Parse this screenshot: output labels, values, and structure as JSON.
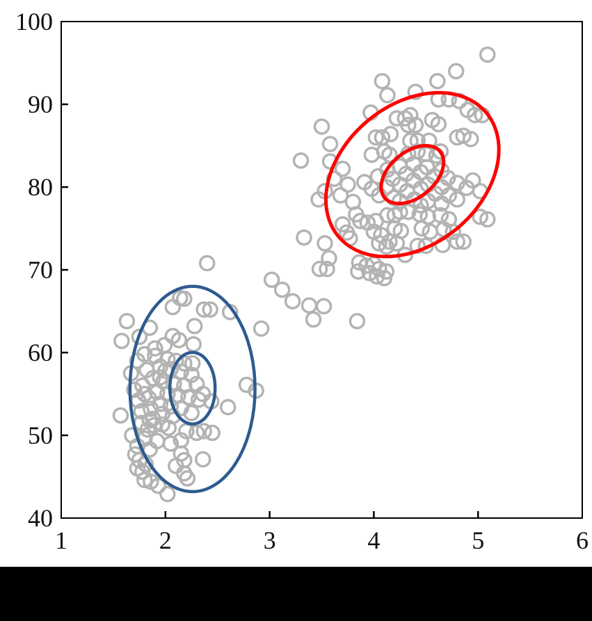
{
  "figure": {
    "background": "#ffffff",
    "bottom_bar_color": "#000000",
    "axis_color": "#000000",
    "tick_label_color": "#111111"
  },
  "chart_data": {
    "type": "scatter",
    "title": "",
    "xlabel": "",
    "ylabel": "",
    "xlim": [
      1,
      6
    ],
    "ylim": [
      40,
      100
    ],
    "x_ticks": [
      1,
      2,
      3,
      4,
      5,
      6
    ],
    "y_ticks": [
      40,
      50,
      60,
      70,
      80,
      90,
      100
    ],
    "grid": false,
    "legend": null,
    "marker": {
      "shape": "open-circle",
      "color": "#b3b3b3",
      "radius_px": 10,
      "stroke_px": 3.5
    },
    "series": [
      {
        "name": "cluster-1-lower-left",
        "color": "#b3b3b3",
        "points": [
          [
            2.4,
            70.8
          ],
          [
            2.14,
            66.6
          ],
          [
            2.18,
            66.5
          ],
          [
            1.63,
            63.8
          ],
          [
            2.07,
            65.5
          ],
          [
            2.37,
            65.2
          ],
          [
            2.43,
            65.2
          ],
          [
            2.62,
            64.9
          ],
          [
            2.92,
            62.9
          ],
          [
            1.85,
            63.0
          ],
          [
            1.75,
            61.9
          ],
          [
            2.28,
            63.2
          ],
          [
            2.07,
            62.0
          ],
          [
            2.13,
            61.5
          ],
          [
            1.99,
            60.9
          ],
          [
            2.27,
            61.0
          ],
          [
            1.58,
            61.4
          ],
          [
            1.9,
            60.5
          ],
          [
            1.8,
            59.8
          ],
          [
            1.9,
            59.6
          ],
          [
            1.73,
            59.0
          ],
          [
            2.02,
            59.2
          ],
          [
            2.1,
            59.0
          ],
          [
            2.18,
            58.7
          ],
          [
            2.26,
            58.7
          ],
          [
            1.95,
            58.3
          ],
          [
            2.05,
            58.0
          ],
          [
            1.82,
            57.9
          ],
          [
            1.67,
            57.5
          ],
          [
            2.15,
            57.7
          ],
          [
            2.25,
            57.3
          ],
          [
            1.88,
            56.9
          ],
          [
            2.0,
            57.8
          ],
          [
            1.95,
            57.0
          ],
          [
            1.98,
            56.5
          ],
          [
            2.08,
            56.2
          ],
          [
            1.78,
            56.0
          ],
          [
            1.7,
            55.5
          ],
          [
            2.18,
            56.0
          ],
          [
            2.3,
            56.2
          ],
          [
            2.78,
            56.1
          ],
          [
            2.87,
            55.4
          ],
          [
            1.92,
            55.2
          ],
          [
            2.02,
            55.0
          ],
          [
            2.12,
            54.8
          ],
          [
            1.84,
            54.5
          ],
          [
            1.74,
            54.2
          ],
          [
            2.22,
            54.6
          ],
          [
            2.32,
            54.3
          ],
          [
            2.44,
            54.1
          ],
          [
            2.36,
            55.0
          ],
          [
            1.8,
            55.0
          ],
          [
            1.95,
            53.8
          ],
          [
            2.05,
            53.5
          ],
          [
            1.86,
            53.2
          ],
          [
            2.15,
            53.3
          ],
          [
            1.77,
            52.9
          ],
          [
            1.57,
            52.4
          ],
          [
            2.6,
            53.4
          ],
          [
            1.97,
            52.6
          ],
          [
            2.07,
            52.3
          ],
          [
            2.25,
            52.7
          ],
          [
            1.88,
            52.0
          ],
          [
            1.85,
            51.8
          ],
          [
            1.77,
            51.5
          ],
          [
            1.83,
            50.7
          ],
          [
            1.89,
            51.2
          ],
          [
            1.97,
            51.3
          ],
          [
            2.03,
            50.9
          ],
          [
            2.2,
            50.5
          ],
          [
            2.3,
            50.3
          ],
          [
            2.37,
            50.5
          ],
          [
            2.45,
            50.3
          ],
          [
            1.68,
            50.0
          ],
          [
            1.8,
            49.6
          ],
          [
            1.92,
            49.3
          ],
          [
            2.05,
            49.0
          ],
          [
            2.15,
            49.4
          ],
          [
            1.73,
            48.7
          ],
          [
            1.85,
            48.3
          ],
          [
            1.71,
            47.7
          ],
          [
            1.75,
            47.0
          ],
          [
            1.81,
            46.5
          ],
          [
            1.73,
            46.0
          ],
          [
            1.78,
            45.6
          ],
          [
            2.15,
            47.8
          ],
          [
            2.18,
            47.0
          ],
          [
            2.36,
            47.1
          ],
          [
            2.1,
            46.3
          ],
          [
            2.18,
            45.4
          ],
          [
            2.21,
            44.8
          ],
          [
            1.8,
            44.6
          ],
          [
            1.86,
            44.4
          ],
          [
            1.93,
            43.9
          ],
          [
            2.02,
            42.9
          ]
        ]
      },
      {
        "name": "between-clusters",
        "color": "#b3b3b3",
        "points": [
          [
            3.02,
            68.8
          ],
          [
            3.12,
            67.6
          ],
          [
            3.22,
            66.2
          ],
          [
            3.38,
            65.7
          ],
          [
            3.52,
            65.6
          ],
          [
            3.42,
            64.0
          ],
          [
            3.84,
            63.8
          ],
          [
            3.33,
            73.9
          ]
        ]
      },
      {
        "name": "cluster-2-upper-right",
        "color": "#b3b3b3",
        "points": [
          [
            5.09,
            96.0
          ],
          [
            4.79,
            94.0
          ],
          [
            4.61,
            92.8
          ],
          [
            4.08,
            92.8
          ],
          [
            4.13,
            91.1
          ],
          [
            4.4,
            91.5
          ],
          [
            3.97,
            89.0
          ],
          [
            4.62,
            90.6
          ],
          [
            4.72,
            90.6
          ],
          [
            4.82,
            90.4
          ],
          [
            4.22,
            88.3
          ],
          [
            4.3,
            88.3
          ],
          [
            4.35,
            88.7
          ],
          [
            4.9,
            89.3
          ],
          [
            4.97,
            88.7
          ],
          [
            5.04,
            88.7
          ],
          [
            4.02,
            86.0
          ],
          [
            4.08,
            86.0
          ],
          [
            4.16,
            86.4
          ],
          [
            4.33,
            87.5
          ],
          [
            4.4,
            87.5
          ],
          [
            4.56,
            88.1
          ],
          [
            4.62,
            87.6
          ],
          [
            4.86,
            86.2
          ],
          [
            4.93,
            85.8
          ],
          [
            3.98,
            83.9
          ],
          [
            4.1,
            84.3
          ],
          [
            4.15,
            83.9
          ],
          [
            4.35,
            85.6
          ],
          [
            4.42,
            85.6
          ],
          [
            4.53,
            85.6
          ],
          [
            4.8,
            86.0
          ],
          [
            4.33,
            84.0
          ],
          [
            4.42,
            84.3
          ],
          [
            4.5,
            84.0
          ],
          [
            4.6,
            83.8
          ],
          [
            4.64,
            84.3
          ],
          [
            3.5,
            87.3
          ],
          [
            3.58,
            85.2
          ],
          [
            3.58,
            83.1
          ],
          [
            3.3,
            83.2
          ],
          [
            3.53,
            79.5
          ],
          [
            3.47,
            78.5
          ],
          [
            3.62,
            81.0
          ],
          [
            3.7,
            82.2
          ],
          [
            3.68,
            79.0
          ],
          [
            3.75,
            80.3
          ],
          [
            3.8,
            78.2
          ],
          [
            3.91,
            80.6
          ],
          [
            3.98,
            79.8
          ],
          [
            4.04,
            81.3
          ],
          [
            4.05,
            79.0
          ],
          [
            4.13,
            82.1
          ],
          [
            4.12,
            80.0
          ],
          [
            4.18,
            81.0
          ],
          [
            4.19,
            78.7
          ],
          [
            4.25,
            82.5
          ],
          [
            4.25,
            80.3
          ],
          [
            4.25,
            78.3
          ],
          [
            4.31,
            81.6
          ],
          [
            4.32,
            79.5
          ],
          [
            4.38,
            82.8
          ],
          [
            4.38,
            80.8
          ],
          [
            4.39,
            78.5
          ],
          [
            4.45,
            81.8
          ],
          [
            4.45,
            79.8
          ],
          [
            4.45,
            77.8
          ],
          [
            4.51,
            82.4
          ],
          [
            4.52,
            80.3
          ],
          [
            4.52,
            78.3
          ],
          [
            4.58,
            81.3
          ],
          [
            4.59,
            79.2
          ],
          [
            4.65,
            82.0
          ],
          [
            4.65,
            80.0
          ],
          [
            4.65,
            78.0
          ],
          [
            4.71,
            81.1
          ],
          [
            4.72,
            79.0
          ],
          [
            4.8,
            80.5
          ],
          [
            4.8,
            78.5
          ],
          [
            4.89,
            79.9
          ],
          [
            4.95,
            80.8
          ],
          [
            5.02,
            79.5
          ],
          [
            3.53,
            73.2
          ],
          [
            3.57,
            71.4
          ],
          [
            3.7,
            75.5
          ],
          [
            3.74,
            74.5
          ],
          [
            3.77,
            73.8
          ],
          [
            3.83,
            76.7
          ],
          [
            3.87,
            75.9
          ],
          [
            3.94,
            75.7
          ],
          [
            4.02,
            75.9
          ],
          [
            4.0,
            74.6
          ],
          [
            4.07,
            74.2
          ],
          [
            4.13,
            76.6
          ],
          [
            4.2,
            76.6
          ],
          [
            4.25,
            77.0
          ],
          [
            4.33,
            77.0
          ],
          [
            4.2,
            75.0
          ],
          [
            4.26,
            74.7
          ],
          [
            4.15,
            73.4
          ],
          [
            4.22,
            73.2
          ],
          [
            4.05,
            73.2
          ],
          [
            4.12,
            72.8
          ],
          [
            4.44,
            76.7
          ],
          [
            4.52,
            76.4
          ],
          [
            4.46,
            75.0
          ],
          [
            4.54,
            74.6
          ],
          [
            4.64,
            76.6
          ],
          [
            4.72,
            76.1
          ],
          [
            4.67,
            74.9
          ],
          [
            4.76,
            74.6
          ],
          [
            4.8,
            73.4
          ],
          [
            4.86,
            73.4
          ],
          [
            4.66,
            73.0
          ],
          [
            4.42,
            72.9
          ],
          [
            4.5,
            72.9
          ],
          [
            4.3,
            71.8
          ],
          [
            5.02,
            76.4
          ],
          [
            5.09,
            76.1
          ],
          [
            3.86,
            70.9
          ],
          [
            3.93,
            70.5
          ],
          [
            4.0,
            70.7
          ],
          [
            4.05,
            70.1
          ],
          [
            4.12,
            69.8
          ],
          [
            3.96,
            69.6
          ],
          [
            4.03,
            69.2
          ],
          [
            4.1,
            69.0
          ],
          [
            3.85,
            69.8
          ],
          [
            3.48,
            70.1
          ],
          [
            3.55,
            70.1
          ]
        ]
      }
    ],
    "ellipses": [
      {
        "name": "cluster-1-outer",
        "color": "#2e5b8f",
        "stroke_px": 4.5,
        "center": [
          2.26,
          55.6
        ],
        "half_width": 0.6,
        "half_height": 12.4,
        "tilt_deg": 0
      },
      {
        "name": "cluster-1-inner",
        "color": "#2e5b8f",
        "stroke_px": 4.5,
        "center": [
          2.26,
          55.7
        ],
        "half_width": 0.217,
        "half_height": 4.33,
        "tilt_deg": 0
      },
      {
        "name": "cluster-2-outer",
        "color": "#ff0000",
        "stroke_px": 5,
        "center": [
          4.37,
          81.5
        ],
        "half_width": 0.83,
        "half_height": 9.9,
        "tilt_deg": 40
      },
      {
        "name": "cluster-2-inner",
        "color": "#ff0000",
        "stroke_px": 5,
        "center": [
          4.37,
          81.5
        ],
        "half_width": 0.3,
        "half_height": 3.5,
        "tilt_deg": 40
      }
    ]
  }
}
